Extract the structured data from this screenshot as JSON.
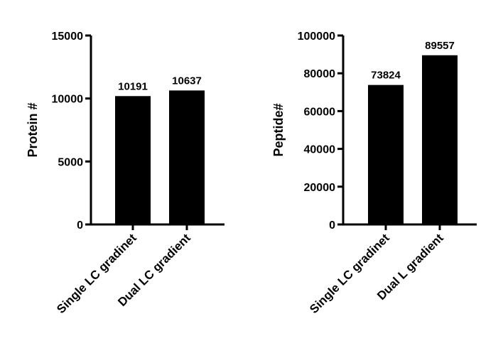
{
  "chart_data": [
    {
      "type": "bar",
      "categories": [
        "Single LC gradinet",
        "Dual LC gradient"
      ],
      "values": [
        10191,
        10637
      ],
      "data_labels": [
        "10191",
        "10637"
      ],
      "ylabel": "Protein #",
      "ylim": [
        0,
        15000
      ],
      "yticks": [
        0,
        5000,
        10000,
        15000
      ],
      "ytick_labels": [
        "0",
        "5000",
        "10000",
        "15000"
      ],
      "bar_color": "#000000",
      "grid": false
    },
    {
      "type": "bar",
      "categories": [
        "Single LC gradinet",
        "Dual L gradient"
      ],
      "values": [
        73824,
        89557
      ],
      "data_labels": [
        "73824",
        "89557"
      ],
      "ylabel": "Peptide#",
      "ylim": [
        0,
        100000
      ],
      "yticks": [
        0,
        20000,
        40000,
        60000,
        80000,
        100000
      ],
      "ytick_labels": [
        "0",
        "20000",
        "40000",
        "60000",
        "80000",
        "100000"
      ],
      "bar_color": "#000000",
      "grid": false
    }
  ]
}
